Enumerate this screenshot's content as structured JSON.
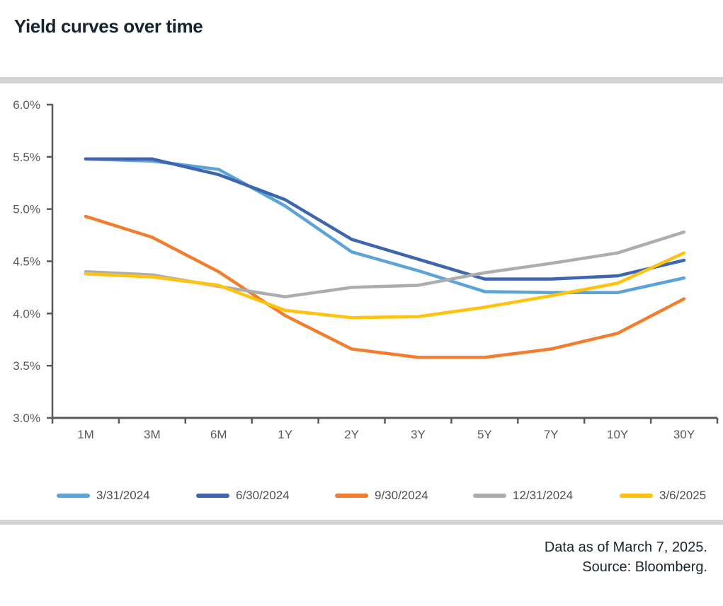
{
  "title": "Yield curves over time",
  "footnote": {
    "line1": "Data as of March 7, 2025.",
    "line2": "Source: Bloomberg."
  },
  "chart_data": {
    "type": "line",
    "title": "Yield curves over time",
    "x_categories": [
      "1M",
      "3M",
      "6M",
      "1Y",
      "2Y",
      "3Y",
      "5Y",
      "7Y",
      "10Y",
      "30Y"
    ],
    "y_tick_labels": [
      "6.0%",
      "5.5%",
      "5.0%",
      "4.5%",
      "4.0%",
      "3.5%",
      "3.0%"
    ],
    "ylim": [
      3.0,
      6.0
    ],
    "y_tick_step": 0.5,
    "unit": "percent",
    "grid": "off",
    "legend_position": "bottom",
    "axis_color": "#58595B",
    "series": [
      {
        "name": "3/31/2024",
        "color": "#5BA4DA",
        "values": [
          5.48,
          5.46,
          5.38,
          5.03,
          4.59,
          4.41,
          4.21,
          4.2,
          4.2,
          4.34
        ]
      },
      {
        "name": "6/30/2024",
        "color": "#3D66AF",
        "values": [
          5.48,
          5.48,
          5.33,
          5.09,
          4.71,
          4.52,
          4.33,
          4.33,
          4.36,
          4.51
        ]
      },
      {
        "name": "9/30/2024",
        "color": "#F07E2E",
        "values": [
          4.93,
          4.73,
          4.4,
          3.98,
          3.66,
          3.58,
          3.58,
          3.66,
          3.81,
          4.14
        ]
      },
      {
        "name": "12/31/2024",
        "color": "#ACADAE",
        "values": [
          4.4,
          4.37,
          4.26,
          4.16,
          4.25,
          4.27,
          4.39,
          4.48,
          4.58,
          4.78
        ]
      },
      {
        "name": "3/6/2025",
        "color": "#FFC30F",
        "values": [
          4.38,
          4.35,
          4.27,
          4.03,
          3.96,
          3.97,
          4.06,
          4.17,
          4.29,
          4.58
        ]
      }
    ]
  }
}
